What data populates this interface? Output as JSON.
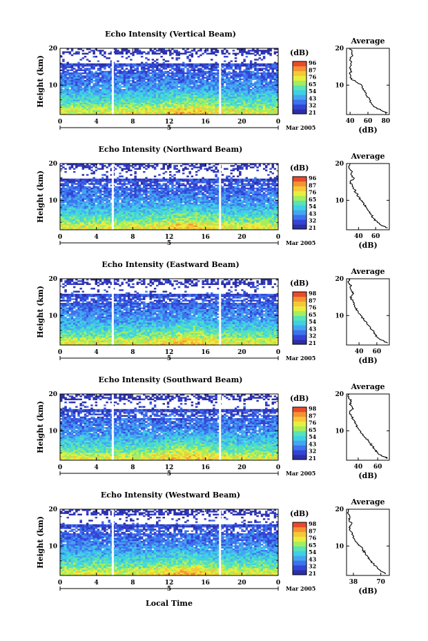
{
  "figure": {
    "xlabel": "Local Time",
    "date_label": "Mar 2005",
    "day_label": "5"
  },
  "colorbar": {
    "unit": "(dB)",
    "colors": [
      "#2c2fa6",
      "#3344d6",
      "#3d73ee",
      "#44a6f0",
      "#3ed0e6",
      "#59e3b6",
      "#a4ee5e",
      "#e9ee3e",
      "#f6c836",
      "#f59332",
      "#ea4a2a"
    ]
  },
  "chart_data": [
    {
      "type": "heatmap",
      "title": "Echo Intensity (Vertical Beam)",
      "ylabel": "Height (km)",
      "x_ticks": [
        "0",
        "4",
        "8",
        "12",
        "16",
        "20",
        "0"
      ],
      "y_ticks": [
        "10",
        "20"
      ],
      "xlim": [
        0,
        24
      ],
      "ylim": [
        2,
        20
      ],
      "colorbar_ticks": [
        "96",
        "87",
        "76",
        "65",
        "54",
        "43",
        "32",
        "21"
      ],
      "gaps_hour": [
        5.8,
        17.6
      ],
      "profile": {
        "title": "Average",
        "xlabel": "(dB)",
        "x_ticks": [
          "40",
          "60",
          "80"
        ],
        "xlim": [
          36,
          84
        ],
        "y_ticks": [
          "10",
          "20"
        ],
        "ylim": [
          2,
          20
        ],
        "height": [
          2.5,
          3,
          4,
          5,
          6,
          7,
          8,
          9,
          10,
          11,
          12,
          13,
          14,
          15,
          16,
          17,
          18,
          19,
          20
        ],
        "value": [
          82,
          76,
          68,
          64,
          62,
          59,
          57,
          55,
          53,
          46,
          40,
          40,
          41,
          40,
          41,
          40,
          43,
          42,
          40
        ]
      }
    },
    {
      "type": "heatmap",
      "title": "Echo Intensity (Northward Beam)",
      "ylabel": "Height (km)",
      "x_ticks": [
        "0",
        "4",
        "8",
        "12",
        "16",
        "20",
        "0"
      ],
      "y_ticks": [
        "10",
        "20"
      ],
      "xlim": [
        0,
        24
      ],
      "ylim": [
        2,
        20
      ],
      "colorbar_ticks": [
        "96",
        "87",
        "76",
        "65",
        "54",
        "43",
        "32",
        "21"
      ],
      "gaps_hour": [
        5.8,
        17.6
      ],
      "profile": {
        "title": "Average",
        "xlabel": "(dB)",
        "x_ticks": [
          "40",
          "60"
        ],
        "xlim": [
          26,
          76
        ],
        "y_ticks": [
          "10",
          "20"
        ],
        "ylim": [
          2,
          20
        ],
        "height": [
          2.5,
          3,
          4,
          5,
          6,
          7,
          8,
          9,
          10,
          11,
          12,
          13,
          14,
          15,
          16,
          17,
          18,
          19,
          20
        ],
        "value": [
          74,
          69,
          62,
          58,
          55,
          52,
          49,
          46,
          43,
          40,
          37,
          35,
          33,
          30,
          35,
          31,
          32,
          29,
          30
        ]
      }
    },
    {
      "type": "heatmap",
      "title": "Echo Intensity (Eastward Beam)",
      "ylabel": "Height (km)",
      "x_ticks": [
        "0",
        "4",
        "8",
        "12",
        "16",
        "20",
        "0"
      ],
      "y_ticks": [
        "10",
        "20"
      ],
      "xlim": [
        0,
        24
      ],
      "ylim": [
        2,
        20
      ],
      "colorbar_ticks": [
        "98",
        "87",
        "76",
        "65",
        "54",
        "43",
        "32",
        "21"
      ],
      "gaps_hour": [
        5.8,
        17.6
      ],
      "profile": {
        "title": "Average",
        "xlabel": "(dB)",
        "x_ticks": [
          "40",
          "60"
        ],
        "xlim": [
          26,
          74
        ],
        "y_ticks": [
          "10",
          "20"
        ],
        "ylim": [
          2,
          20
        ],
        "height": [
          2.5,
          3,
          4,
          5,
          6,
          7,
          8,
          9,
          10,
          11,
          12,
          13,
          14,
          15,
          16,
          17,
          18,
          19,
          20
        ],
        "value": [
          72,
          68,
          61,
          58,
          55,
          52,
          49,
          45,
          42,
          39,
          36,
          34,
          33,
          30,
          34,
          31,
          31,
          28,
          30
        ]
      }
    },
    {
      "type": "heatmap",
      "title": "Echo Intensity (Southward Beam)",
      "ylabel": "Height (km)",
      "x_ticks": [
        "0",
        "4",
        "8",
        "12",
        "16",
        "20",
        "0"
      ],
      "y_ticks": [
        "10",
        "20"
      ],
      "xlim": [
        0,
        24
      ],
      "ylim": [
        2,
        20
      ],
      "colorbar_ticks": [
        "98",
        "87",
        "76",
        "65",
        "54",
        "43",
        "32",
        "21"
      ],
      "gaps_hour": [
        5.8,
        17.6
      ],
      "profile": {
        "title": "Average",
        "xlabel": "(dB)",
        "x_ticks": [
          "40",
          "60"
        ],
        "xlim": [
          28,
          72
        ],
        "y_ticks": [
          "10",
          "20"
        ],
        "ylim": [
          2,
          20
        ],
        "height": [
          2.5,
          3,
          4,
          5,
          6,
          7,
          8,
          9,
          10,
          11,
          12,
          13,
          14,
          15,
          16,
          17,
          18,
          19,
          20
        ],
        "value": [
          70,
          66,
          60,
          57,
          54,
          51,
          48,
          45,
          42,
          39,
          37,
          35,
          33,
          31,
          35,
          32,
          33,
          30,
          31
        ]
      }
    },
    {
      "type": "heatmap",
      "title": "Echo Intensity (Westward Beam)",
      "ylabel": "Height (km)",
      "x_ticks": [
        "0",
        "4",
        "8",
        "12",
        "16",
        "20",
        "0"
      ],
      "y_ticks": [
        "10",
        "20"
      ],
      "xlim": [
        0,
        24
      ],
      "ylim": [
        2,
        20
      ],
      "colorbar_ticks": [
        "98",
        "87",
        "76",
        "65",
        "54",
        "43",
        "32",
        "21"
      ],
      "gaps_hour": [
        5.8,
        17.6
      ],
      "profile": {
        "title": "Average",
        "xlabel": "(dB)",
        "x_ticks": [
          "38",
          "70"
        ],
        "xlim": [
          30,
          80
        ],
        "y_ticks": [
          "10",
          "20"
        ],
        "ylim": [
          2,
          20
        ],
        "height": [
          2.5,
          3,
          4,
          5,
          6,
          7,
          8,
          9,
          10,
          11,
          12,
          13,
          14,
          15,
          16,
          17,
          18,
          19,
          20
        ],
        "value": [
          76,
          72,
          66,
          62,
          58,
          55,
          52,
          49,
          46,
          42,
          39,
          37,
          35,
          33,
          36,
          33,
          34,
          31,
          32
        ]
      }
    }
  ]
}
